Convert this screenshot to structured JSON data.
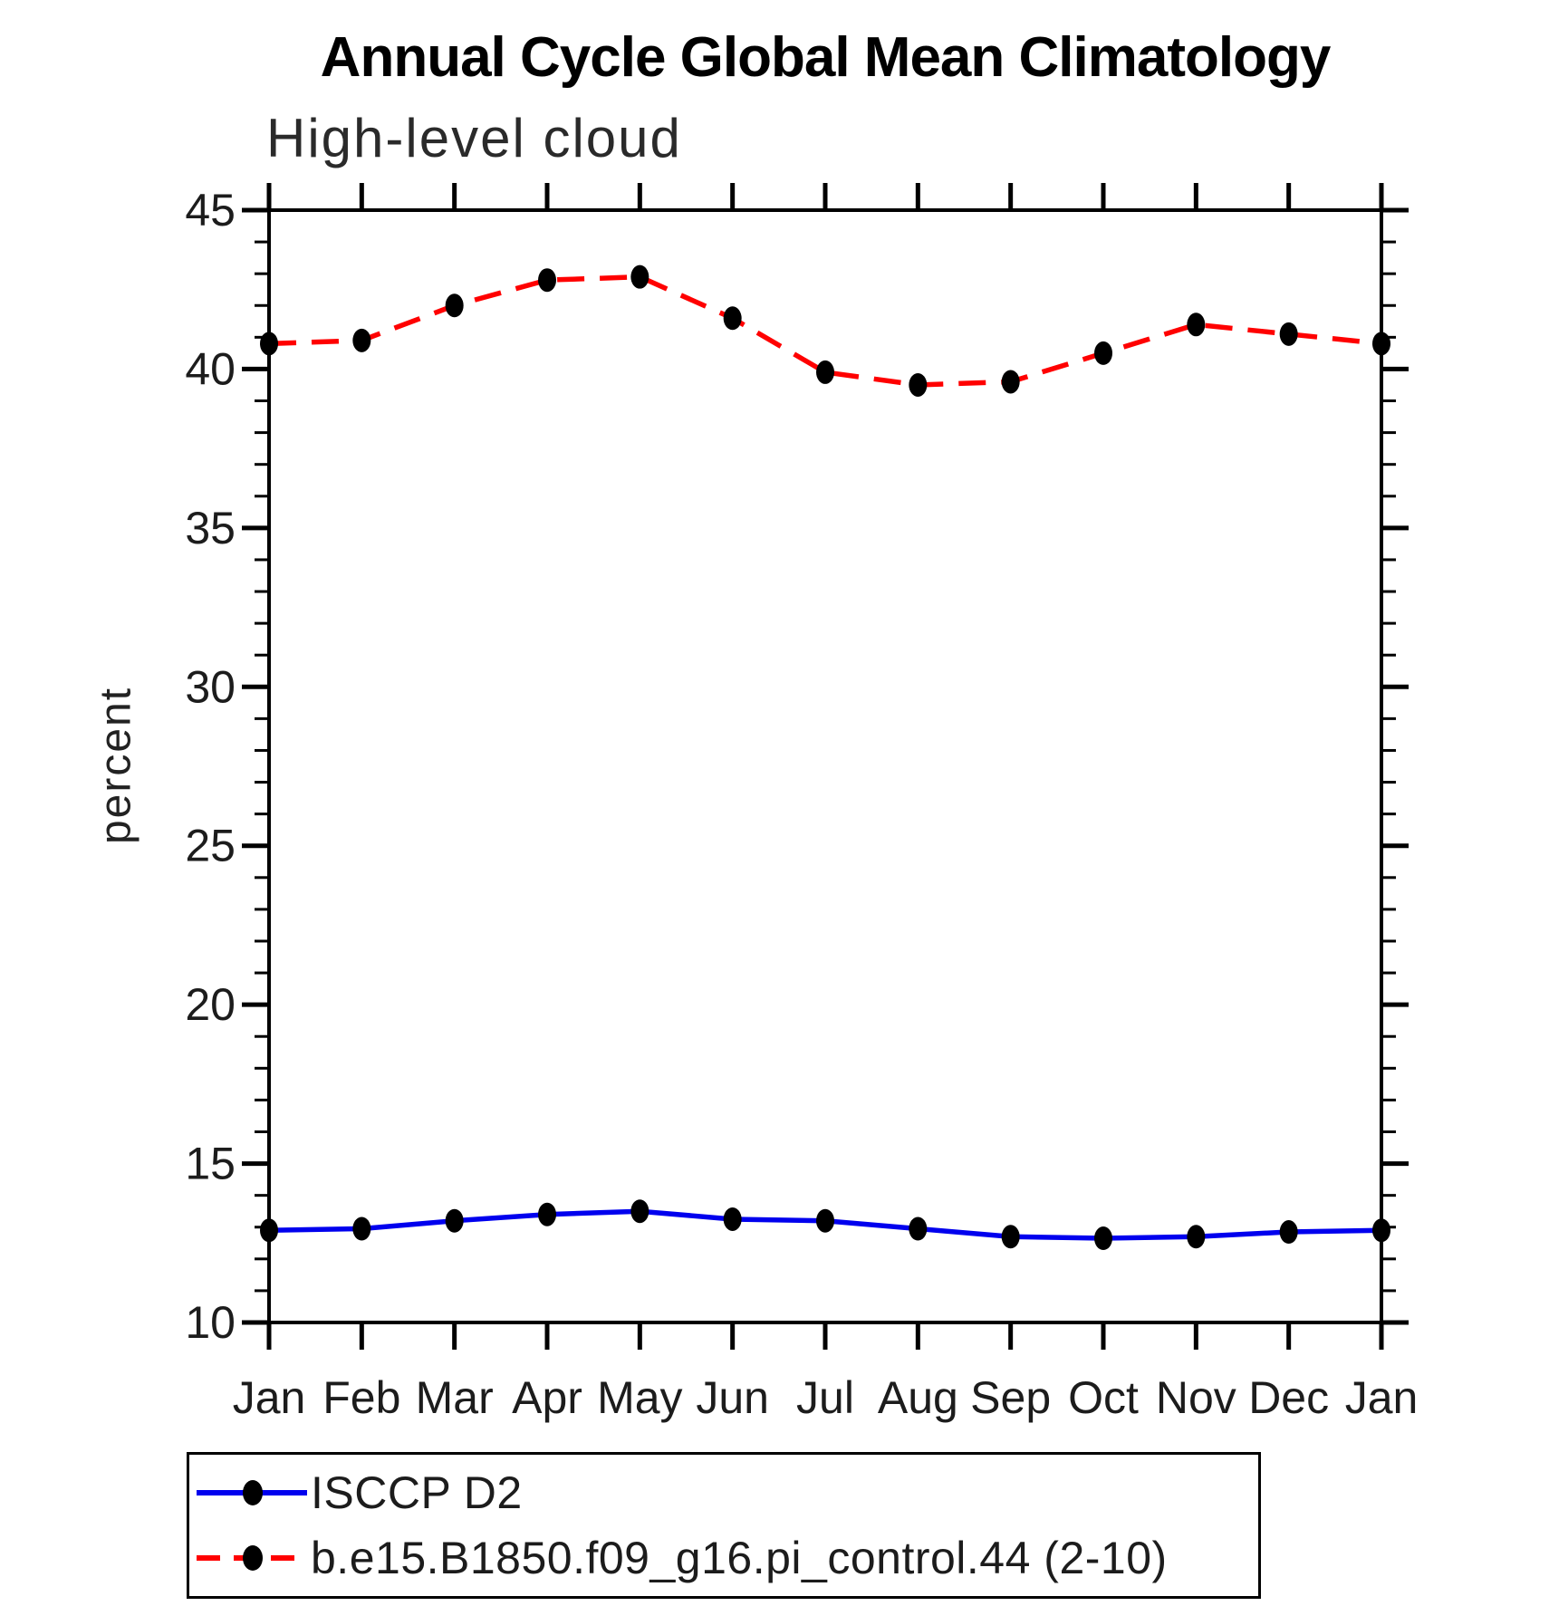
{
  "chart_data": {
    "type": "line",
    "title": "Annual Cycle Global Mean Climatology",
    "subtitle": "High-level cloud",
    "ylabel": "percent",
    "xlabel": "",
    "x_categories": [
      "Jan",
      "Feb",
      "Mar",
      "Apr",
      "May",
      "Jun",
      "Jul",
      "Aug",
      "Sep",
      "Oct",
      "Nov",
      "Dec",
      "Jan"
    ],
    "ylim": [
      10,
      45
    ],
    "ytick_major": [
      10,
      15,
      20,
      25,
      30,
      35,
      40,
      45
    ],
    "ytick_minor_step": 1,
    "grid": false,
    "legend_position": "bottom-left-box",
    "axis_color": "#000000",
    "marker": "black-ellipse",
    "marker_color": "#000000",
    "series": [
      {
        "name": "ISCCP D2",
        "color": "#0000ee",
        "line_style": "solid",
        "values": [
          12.9,
          12.95,
          13.2,
          13.4,
          13.5,
          13.25,
          13.2,
          12.95,
          12.7,
          12.65,
          12.7,
          12.85,
          12.9
        ]
      },
      {
        "name": "b.e15.B1850.f09_g16.pi_control.44 (2-10)",
        "color": "#ff0000",
        "line_style": "dashed",
        "values": [
          40.8,
          40.9,
          42.0,
          42.8,
          42.9,
          41.6,
          39.9,
          39.5,
          39.6,
          40.5,
          41.4,
          41.1,
          40.8
        ]
      }
    ]
  }
}
